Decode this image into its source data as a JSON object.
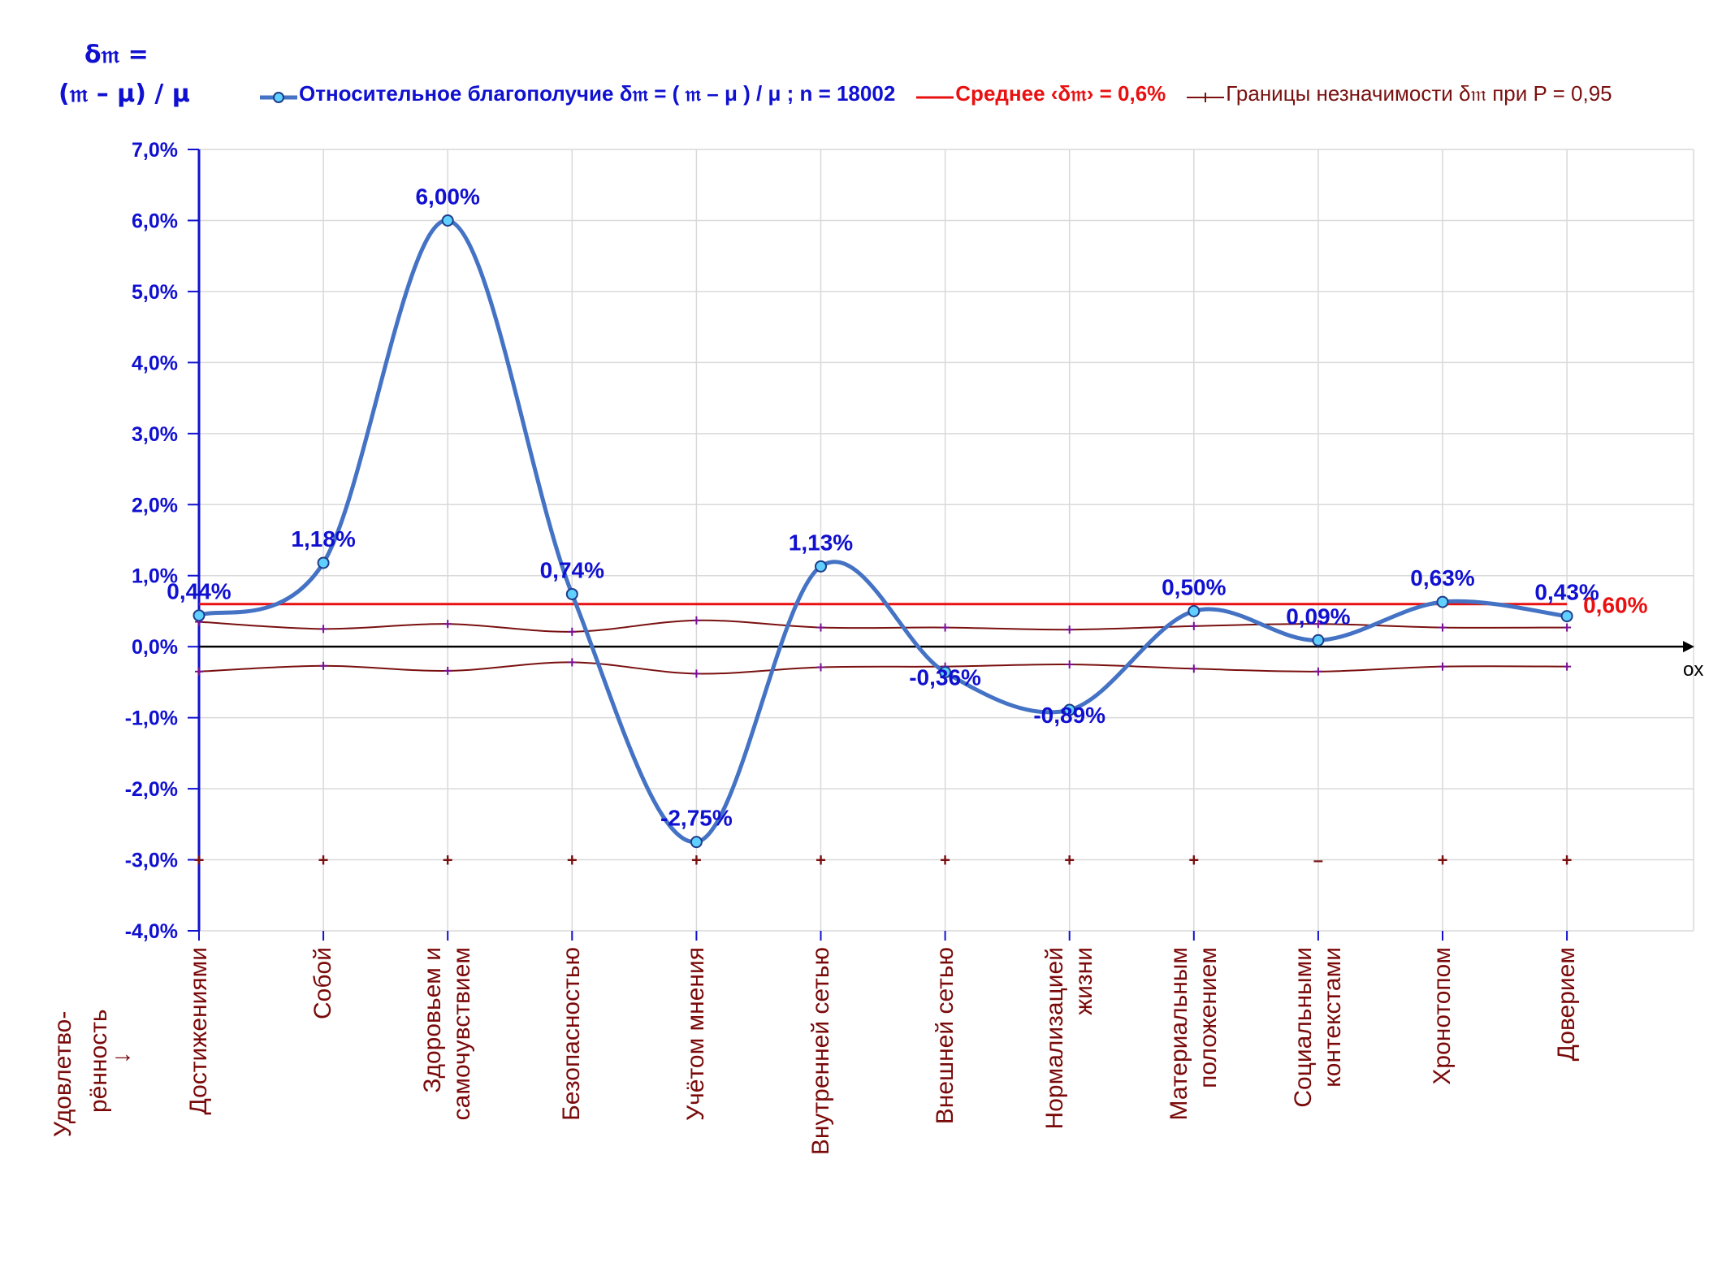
{
  "y_axis_title": {
    "line1": "δ𝔪 =",
    "line2": "(𝔪 – μ) / μ"
  },
  "legend": {
    "series_label": "Относительное благополучие δ𝔪 = ( 𝔪 – μ ) / μ ; n = 18002",
    "mean_label": "Среднее ‹δ𝔪› = 0,6%",
    "bounds_label": "Границы незначимости δ𝔪 при P = 0,95"
  },
  "x_axis_end_label": "ox",
  "side_title": {
    "line1": "Удовлетво-",
    "line2": "рённость",
    "line3": "↓"
  },
  "mean_value_label": "0,60%",
  "colors": {
    "series": "#4472c4",
    "marker_fill": "#5fd0ff",
    "mean": "#e81010",
    "bounds": "#7a1010",
    "axis": "#1010d0",
    "grid": "#d9d9d9"
  },
  "chart_data": {
    "type": "line",
    "categories": [
      [
        "Достижениями"
      ],
      [
        "Собой"
      ],
      [
        "Здоровьем и",
        "самочувствием"
      ],
      [
        "Безопасностью"
      ],
      [
        "Учётом мнения"
      ],
      [
        "Внутренней сетью"
      ],
      [
        "Внешней сетью"
      ],
      [
        "Нормализацией",
        "жизни"
      ],
      [
        "Материальным",
        "положением"
      ],
      [
        "Социальными",
        "контекстами"
      ],
      [
        "Хронотопом"
      ],
      [
        "Доверием"
      ]
    ],
    "series": [
      {
        "name": "Относительное благополучие δ𝔪 = ( 𝔪 – μ ) / μ ; n = 18002",
        "values": [
          0.44,
          1.18,
          6.0,
          0.74,
          -2.75,
          1.13,
          -0.36,
          -0.89,
          0.5,
          0.09,
          0.63,
          0.43
        ],
        "labels": [
          "0,44%",
          "1,18%",
          "6,00%",
          "0,74%",
          "-2,75%",
          "1,13%",
          "-0,36%",
          "-0,89%",
          "0,50%",
          "0,09%",
          "0,63%",
          "0,43%"
        ]
      },
      {
        "name": "Среднее ‹δ𝔪› = 0,6%",
        "values": [
          0.6,
          0.6,
          0.6,
          0.6,
          0.6,
          0.6,
          0.6,
          0.6,
          0.6,
          0.6,
          0.6,
          0.6
        ]
      },
      {
        "name": "Границы незначимости δ𝔪 при P = 0,95 (верхняя)",
        "values": [
          0.35,
          0.25,
          0.32,
          0.21,
          0.37,
          0.27,
          0.27,
          0.24,
          0.29,
          0.32,
          0.27,
          0.27
        ]
      },
      {
        "name": "Границы незначимости δ𝔪 при P = 0,95 (нижняя)",
        "values": [
          -0.35,
          -0.27,
          -0.34,
          -0.22,
          -0.38,
          -0.29,
          -0.28,
          -0.25,
          -0.31,
          -0.35,
          -0.28,
          -0.28
        ]
      }
    ],
    "ylim": [
      -4.0,
      7.0
    ],
    "yticks": [
      7.0,
      6.0,
      5.0,
      4.0,
      3.0,
      2.0,
      1.0,
      0.0,
      -1.0,
      -2.0,
      -3.0,
      -4.0
    ],
    "ytick_labels": [
      "7,0%",
      "6,0%",
      "5,0%",
      "4,0%",
      "3,0%",
      "2,0%",
      "1,0%",
      "0,0%",
      "-1,0%",
      "-2,0%",
      "-3,0%",
      "-4,0%"
    ],
    "bottom_markers": [
      "+",
      "+",
      "+",
      "+",
      "+",
      "+",
      "+",
      "+",
      "+",
      "–",
      "+",
      "+"
    ],
    "bottom_marker_level": -3.0,
    "grid": true,
    "legend_position": "top"
  }
}
